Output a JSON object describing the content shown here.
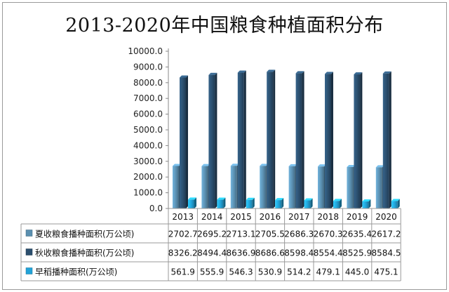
{
  "chart_data": {
    "type": "bar",
    "title": "2013-2020年中国粮食种植面积分布",
    "categories": [
      "2013",
      "2014",
      "2015",
      "2016",
      "2017",
      "2018",
      "2019",
      "2020"
    ],
    "ylim": [
      0,
      10000
    ],
    "yticks": [
      "0.0",
      "1000.0",
      "2000.0",
      "3000.0",
      "4000.0",
      "5000.0",
      "6000.0",
      "7000.0",
      "8000.0",
      "9000.0",
      "10000.0"
    ],
    "grid": false,
    "legend": "data-table-left",
    "series": [
      {
        "name": "夏收粮食播种面积(万公顷)",
        "color": "#5a8fb0",
        "values": [
          2702.7,
          2695.2,
          2713.1,
          2705.5,
          2686.3,
          2670.3,
          2635.4,
          2617.2
        ],
        "labels": [
          "2702.7",
          "2695.2",
          "2713.1",
          "2705.5",
          "2686.3",
          "2670.3",
          "2635.4",
          "2617.2"
        ]
      },
      {
        "name": "秋收粮食播种面积(万公顷)",
        "color": "#2b4f6e",
        "values": [
          8326.2,
          8494.4,
          8636.9,
          8686.6,
          8598.4,
          8554.4,
          8525.9,
          8584.5
        ],
        "labels": [
          "8326.2",
          "8494.4",
          "8636.9",
          "8686.6",
          "8598.4",
          "8554.4",
          "8525.9",
          "8584.5"
        ]
      },
      {
        "name": "早稻播种面积(万公顷)",
        "color": "#22a3d8",
        "values": [
          561.9,
          555.9,
          546.3,
          530.9,
          514.2,
          479.1,
          445.0,
          475.1
        ],
        "labels": [
          "561.9",
          "555.9",
          "546.3",
          "530.9",
          "514.2",
          "479.1",
          "445.0",
          "475.1"
        ]
      }
    ]
  }
}
